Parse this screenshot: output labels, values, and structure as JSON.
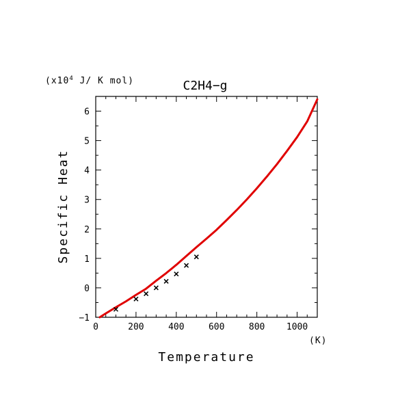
{
  "chart_data": {
    "type": "line",
    "title": "C2H4−g",
    "xlabel": "Temperature",
    "ylabel": "Specific Heat",
    "x_unit": "(K)",
    "y_unit_prefix": "(x10",
    "y_unit_exp": "4",
    "y_unit_suffix": " J/ K mol)",
    "xlim": [
      0,
      1100
    ],
    "ylim": [
      -1,
      6.5
    ],
    "x_ticks": [
      0,
      200,
      400,
      600,
      800,
      1000
    ],
    "y_ticks": [
      -1,
      0,
      1,
      2,
      3,
      4,
      5,
      6
    ],
    "x_tick_labels": [
      "0",
      "200",
      "400",
      "600",
      "800",
      "1000"
    ],
    "y_tick_labels": [
      "−1",
      "0",
      "1",
      "2",
      "3",
      "4",
      "5",
      "6"
    ],
    "grid": false,
    "series": [
      {
        "style": "line",
        "color": "#e00000",
        "x": [
          20,
          50,
          100,
          150,
          200,
          250,
          300,
          350,
          400,
          450,
          500,
          550,
          600,
          650,
          700,
          750,
          800,
          850,
          900,
          950,
          1000,
          1050,
          1100
        ],
        "y": [
          -1.0,
          -0.87,
          -0.66,
          -0.46,
          -0.24,
          -0.03,
          0.24,
          0.5,
          0.78,
          1.08,
          1.38,
          1.67,
          1.97,
          2.3,
          2.64,
          3.0,
          3.38,
          3.78,
          4.2,
          4.65,
          5.12,
          5.65,
          6.4
        ]
      },
      {
        "style": "markers",
        "marker": "x",
        "color": "#000000",
        "x": [
          100,
          200,
          250,
          300,
          350,
          400,
          450,
          500
        ],
        "y": [
          -0.73,
          -0.38,
          -0.2,
          0.0,
          0.22,
          0.47,
          0.76,
          1.05
        ]
      }
    ]
  }
}
